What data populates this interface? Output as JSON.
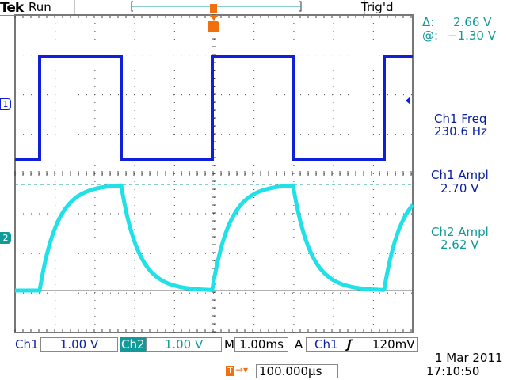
{
  "header": {
    "brand": "Tek",
    "acq_state": "Run",
    "trigger_status": "Trig'd",
    "trigger_marker": "T"
  },
  "cursor_readout": {
    "delta_label": "Δ:",
    "delta_value": "2.66 V",
    "at_label": "@:",
    "at_value": "−1.30 V"
  },
  "measurements": [
    {
      "label": "Ch1 Freq",
      "value": "230.6 Hz",
      "color": "#0a1f9c"
    },
    {
      "label": "Ch1 Ampl",
      "value": "2.70 V",
      "color": "#0a1f9c"
    },
    {
      "label": "Ch2 Ampl",
      "value": "2.62 V",
      "color": "#109a9a"
    }
  ],
  "channels": {
    "ch1": {
      "marker": "1",
      "color": "#1020d8"
    },
    "ch2": {
      "marker": "2",
      "color": "#20e0e8"
    }
  },
  "footer": {
    "ch1_label": "Ch1",
    "ch1_scale": "1.00 V",
    "ch2_label": "Ch2",
    "ch2_scale": "1.00 V",
    "timebase_label": "M",
    "timebase": "1.00ms",
    "trigger_mode": "A",
    "trigger_source": "Ch1",
    "trigger_slope": "rising-edge-icon",
    "trigger_level": "120mV",
    "trigger_pos_marker": "T",
    "trigger_delay": "100.000µs",
    "date": "1 Mar  2011",
    "time": "17:10:50"
  }
}
